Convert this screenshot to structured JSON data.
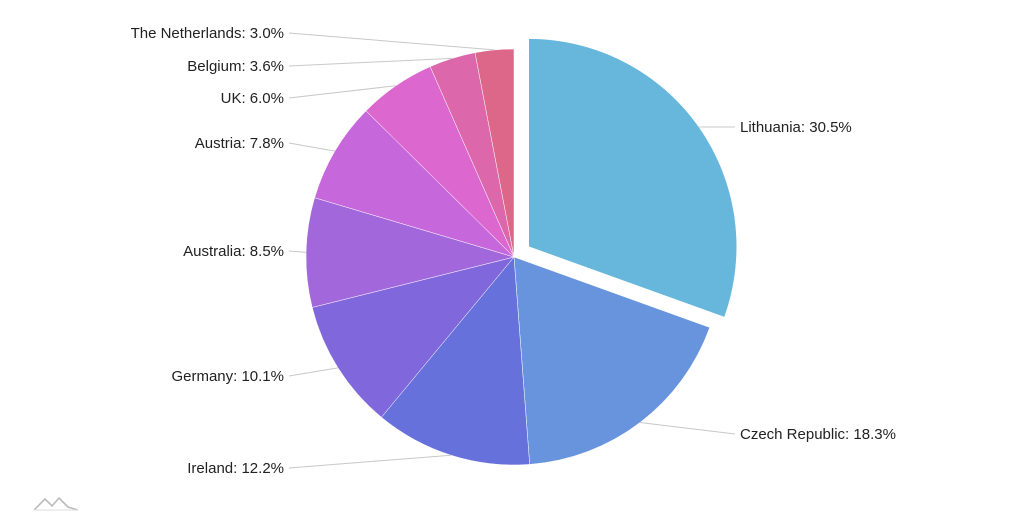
{
  "chart_data": {
    "type": "pie",
    "slices": [
      {
        "category": "Lithuania",
        "percent": 30.5,
        "label": "Lithuania: 30.5%",
        "color": "#67b7dc",
        "pulled_out": true
      },
      {
        "category": "Czech Republic",
        "percent": 18.3,
        "label": "Czech Republic: 18.3%",
        "color": "#6794dc",
        "pulled_out": false
      },
      {
        "category": "Ireland",
        "percent": 12.2,
        "label": "Ireland: 12.2%",
        "color": "#6771dc",
        "pulled_out": false
      },
      {
        "category": "Germany",
        "percent": 10.1,
        "label": "Germany: 10.1%",
        "color": "#8067dc",
        "pulled_out": false
      },
      {
        "category": "Australia",
        "percent": 8.5,
        "label": "Australia: 8.5%",
        "color": "#a367dc",
        "pulled_out": false
      },
      {
        "category": "Austria",
        "percent": 7.8,
        "label": "Austria: 7.8%",
        "color": "#c767dc",
        "pulled_out": false
      },
      {
        "category": "UK",
        "percent": 6.0,
        "label": "UK: 6.0%",
        "color": "#dc67ce",
        "pulled_out": false
      },
      {
        "category": "Belgium",
        "percent": 3.6,
        "label": "Belgium: 3.6%",
        "color": "#dc67ab",
        "pulled_out": false
      },
      {
        "category": "The Netherlands",
        "percent": 3.0,
        "label": "The Netherlands: 3.0%",
        "color": "#dc6788",
        "pulled_out": false
      }
    ],
    "start_angle": "top",
    "direction": "clockwise",
    "legend": "none"
  },
  "watermark_icon": "amcharts-logo-icon"
}
